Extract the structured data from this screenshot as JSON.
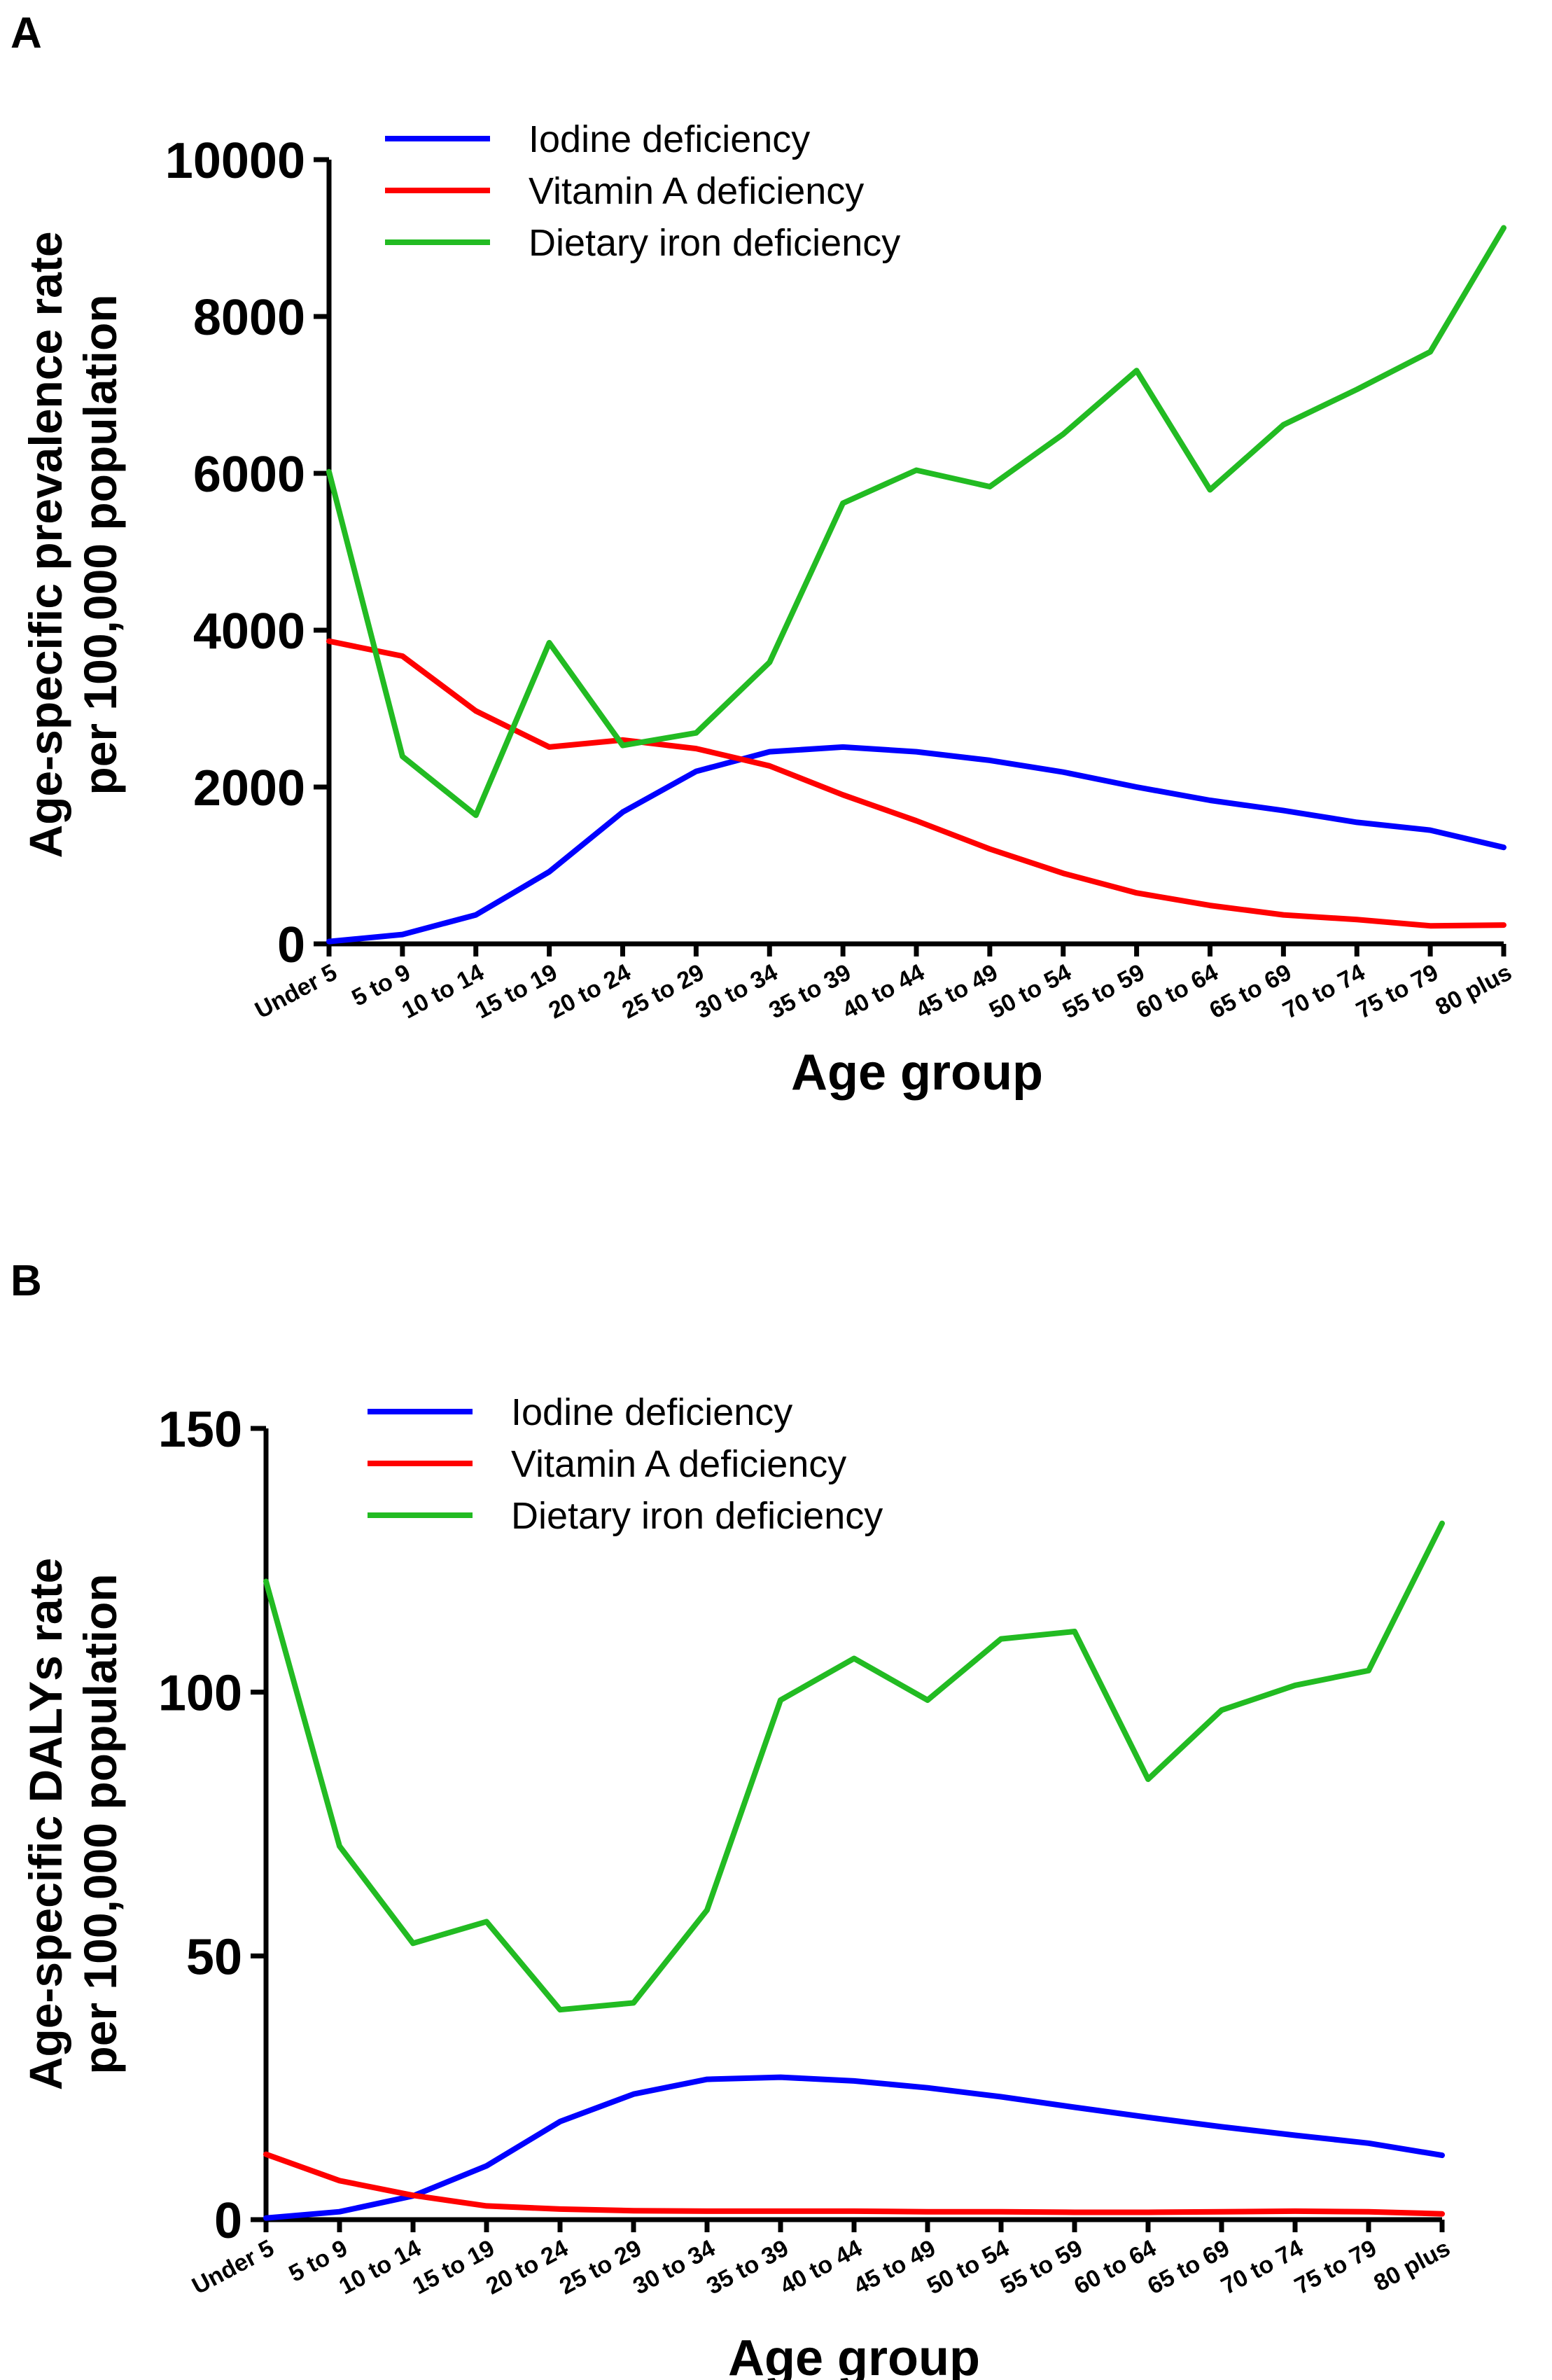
{
  "chart_data": [
    {
      "panel": "A",
      "type": "line",
      "title": "",
      "xlabel": "Age group",
      "ylabel": [
        "Age-specific prevalence rate",
        "per 100,000 population"
      ],
      "ylim": [
        0,
        10000
      ],
      "yticks": [
        0,
        2000,
        4000,
        6000,
        8000,
        10000
      ],
      "legend_position": "top-left",
      "categories": [
        "Under 5",
        "5 to 9",
        "10 to 14",
        "15 to 19",
        "20 to 24",
        "25 to 29",
        "30 to 34",
        "35 to 39",
        "40 to 44",
        "45 to 49",
        "50 to 54",
        "55 to 59",
        "60 to 64",
        "65 to 69",
        "70 to 74",
        "75 to 79",
        "80 plus"
      ],
      "series": [
        {
          "name": "Iodine deficiency",
          "color": "#0000ff",
          "values": [
            30,
            120,
            370,
            920,
            1680,
            2200,
            2450,
            2510,
            2450,
            2340,
            2190,
            2000,
            1830,
            1700,
            1550,
            1450,
            1230
          ]
        },
        {
          "name": "Vitamin A deficiency",
          "color": "#ff0000",
          "values": [
            3860,
            3670,
            2970,
            2510,
            2600,
            2490,
            2270,
            1900,
            1570,
            1210,
            900,
            650,
            490,
            370,
            310,
            230,
            240
          ]
        },
        {
          "name": "Dietary iron deficiency",
          "color": "#22bb22",
          "values": [
            6020,
            2390,
            1640,
            3840,
            2530,
            2690,
            3590,
            5620,
            6040,
            5830,
            6500,
            7310,
            5790,
            6620,
            7070,
            7550,
            9130
          ]
        }
      ]
    },
    {
      "panel": "B",
      "type": "line",
      "title": "",
      "xlabel": "Age group",
      "ylabel": [
        "Age-specific DALYs rate",
        "per 100,000 population"
      ],
      "ylim": [
        0,
        150
      ],
      "yticks": [
        0,
        50,
        100,
        150
      ],
      "legend_position": "top-left",
      "categories": [
        "Under 5",
        "5 to 9",
        "10 to 14",
        "15 to 19",
        "20 to 24",
        "25 to 29",
        "30 to 34",
        "35 to 39",
        "40 to 44",
        "45 to 49",
        "50 to 54",
        "55 to 59",
        "60 to 64",
        "65 to 69",
        "70 to 74",
        "75 to 79",
        "80 plus"
      ],
      "series": [
        {
          "name": "Iodine deficiency",
          "color": "#0000ff",
          "values": [
            0.3,
            1.5,
            4.5,
            10.2,
            18.6,
            23.8,
            26.6,
            27.0,
            26.3,
            25.0,
            23.3,
            21.3,
            19.4,
            17.6,
            16.0,
            14.5,
            12.2
          ]
        },
        {
          "name": "Vitamin A deficiency",
          "color": "#ff0000",
          "values": [
            12.4,
            7.4,
            4.6,
            2.6,
            2.0,
            1.7,
            1.6,
            1.6,
            1.6,
            1.5,
            1.5,
            1.4,
            1.4,
            1.5,
            1.6,
            1.5,
            1.1
          ]
        },
        {
          "name": "Dietary iron deficiency",
          "color": "#22bb22",
          "values": [
            121.0,
            70.8,
            52.4,
            56.5,
            39.8,
            41.1,
            58.7,
            98.5,
            106.4,
            98.5,
            110.1,
            111.5,
            83.5,
            96.6,
            101.3,
            104.1,
            132.0
          ]
        }
      ]
    }
  ]
}
